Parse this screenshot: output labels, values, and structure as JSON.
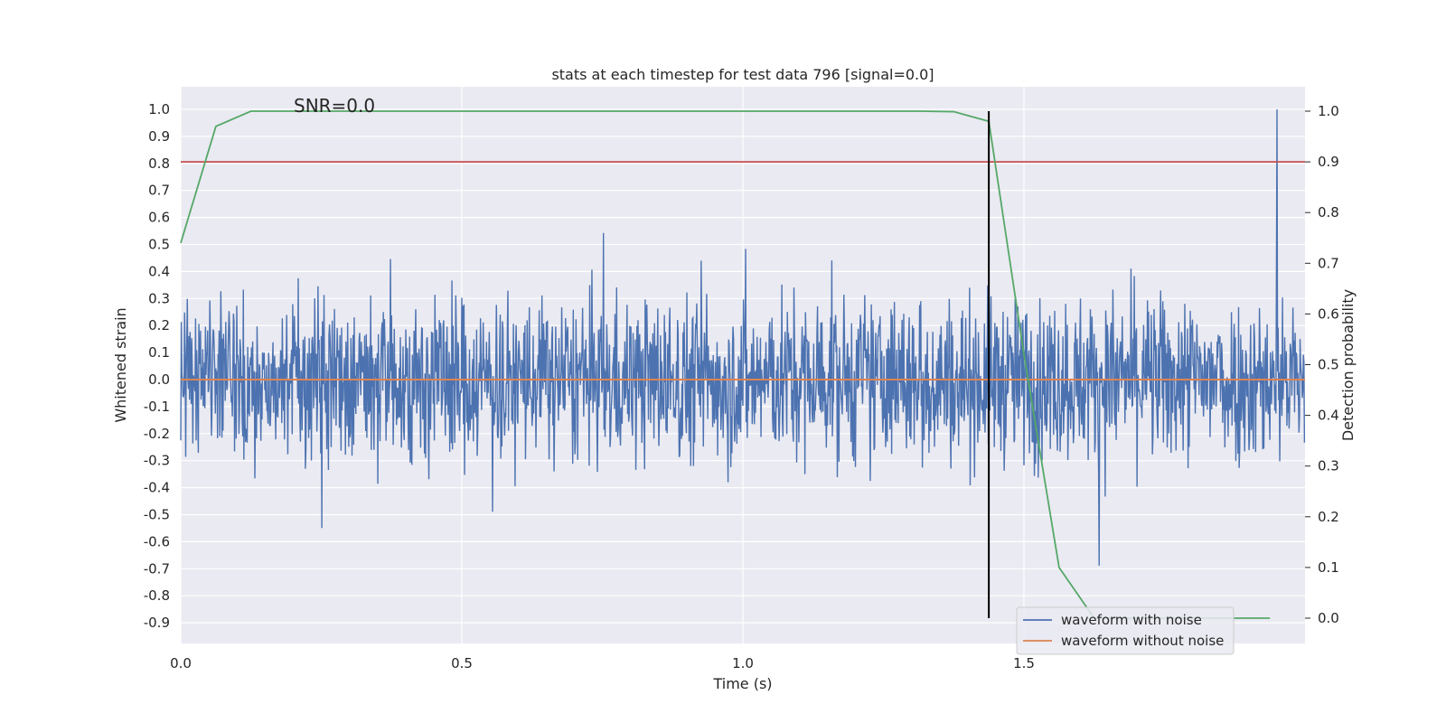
{
  "chart_data": {
    "type": "line",
    "title": "stats at each timestep for test data 796 [signal=0.0]",
    "xlabel": "Time (s)",
    "ylabel": "Whitened strain",
    "y2label": "Detection probability",
    "annotation": "SNR=0.0",
    "xlim": [
      0.0,
      2.0
    ],
    "ylim": [
      -0.97,
      1.09
    ],
    "y2lim": [
      -0.0475,
      1.0475
    ],
    "xticks": [
      {
        "value": 0.0,
        "label": "0.0"
      },
      {
        "value": 0.5,
        "label": "0.5"
      },
      {
        "value": 1.0,
        "label": "1.0"
      },
      {
        "value": 1.5,
        "label": "1.5"
      }
    ],
    "yticks": [
      {
        "value": 1.0,
        "label": "1.0"
      },
      {
        "value": 0.9,
        "label": "0.9"
      },
      {
        "value": 0.8,
        "label": "0.8"
      },
      {
        "value": 0.7,
        "label": "0.7"
      },
      {
        "value": 0.6,
        "label": "0.6"
      },
      {
        "value": 0.5,
        "label": "0.5"
      },
      {
        "value": 0.4,
        "label": "0.4"
      },
      {
        "value": 0.3,
        "label": "0.3"
      },
      {
        "value": 0.2,
        "label": "0.2"
      },
      {
        "value": 0.1,
        "label": "0.1"
      },
      {
        "value": 0.0,
        "label": "0.0"
      },
      {
        "value": -0.1,
        "label": "-0.1"
      },
      {
        "value": -0.2,
        "label": "-0.2"
      },
      {
        "value": -0.3,
        "label": "-0.3"
      },
      {
        "value": -0.4,
        "label": "-0.4"
      },
      {
        "value": -0.5,
        "label": "-0.5"
      },
      {
        "value": -0.6,
        "label": "-0.6"
      },
      {
        "value": -0.7,
        "label": "-0.7"
      },
      {
        "value": -0.8,
        "label": "-0.8"
      },
      {
        "value": -0.9,
        "label": "-0.9"
      }
    ],
    "y2ticks": [
      {
        "value": 1.0,
        "label": "1.0"
      },
      {
        "value": 0.9,
        "label": "0.9"
      },
      {
        "value": 0.8,
        "label": "0.8"
      },
      {
        "value": 0.7,
        "label": "0.7"
      },
      {
        "value": 0.6,
        "label": "0.6"
      },
      {
        "value": 0.5,
        "label": "0.5"
      },
      {
        "value": 0.4,
        "label": "0.4"
      },
      {
        "value": 0.3,
        "label": "0.3"
      },
      {
        "value": 0.2,
        "label": "0.2"
      },
      {
        "value": 0.1,
        "label": "0.1"
      },
      {
        "value": 0.0,
        "label": "0.0"
      }
    ],
    "grid": true,
    "legend_placement": "lower-right",
    "series": [
      {
        "name": "waveform with noise",
        "color": "#4c72b0",
        "axis": "left",
        "kind": "noise",
        "n_points": 2048,
        "values_approx": "random noise roughly within [-0.8, 1.0], std about 0.25, max 1.0 near t=1.95"
      },
      {
        "name": "waveform without noise",
        "color": "#dd8452",
        "axis": "left",
        "x": [
          0.0,
          2.0
        ],
        "y": [
          0.0,
          0.0
        ]
      },
      {
        "color": "#55a868",
        "axis": "right",
        "x": [
          0.0,
          0.0625,
          0.125,
          0.1875,
          1.3125,
          1.375,
          1.4375,
          1.5,
          1.5625,
          1.625,
          1.6875,
          1.75,
          1.8125,
          1.875,
          1.9375
        ],
        "y": [
          0.74,
          0.97,
          1.0,
          1.0,
          1.0,
          0.999,
          0.98,
          0.52,
          0.1,
          0.0,
          0.0,
          0.0,
          0.0,
          0.0,
          0.0
        ]
      }
    ],
    "threshold_line": {
      "axis": "right",
      "y": 0.9,
      "color": "#c44e52"
    },
    "marker_line": {
      "x": 1.4375,
      "y2_range": [
        0.0,
        1.0
      ],
      "color": "#000000"
    }
  }
}
